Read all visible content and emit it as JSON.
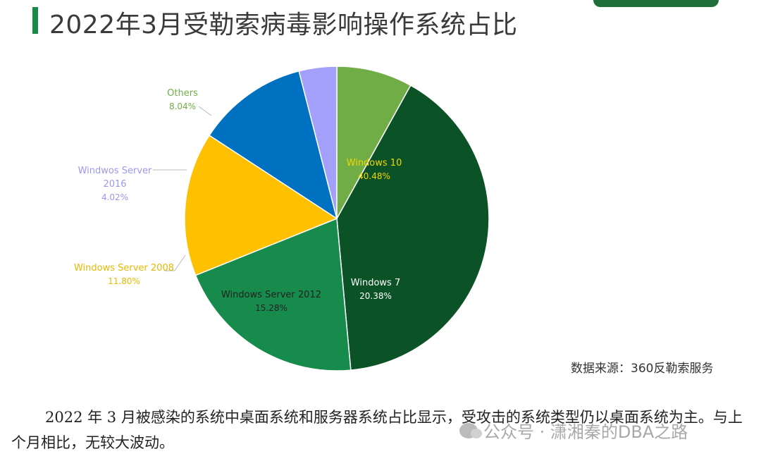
{
  "header": {
    "title": "2022年3月受勒索病毒影响操作系统占比"
  },
  "chart_data": {
    "type": "pie",
    "slices": [
      {
        "label": "Windows 10",
        "value": 40.48,
        "display": "40.48%",
        "color": "#0b5226",
        "label_color": "#f2d600"
      },
      {
        "label": "Windows 7",
        "value": 20.38,
        "display": "20.38%",
        "color": "#168b4b",
        "label_color": "#ffffff"
      },
      {
        "label": "Windows Server 2012",
        "value": 15.28,
        "display": "15.28%",
        "color": "#ffc000",
        "label_color": "#222222"
      },
      {
        "label": "Windows Server 2008",
        "value": 11.8,
        "display": "11.80%",
        "color": "#0070c0",
        "label_color": "#e6b800"
      },
      {
        "label": "Windwos Server 2016",
        "value": 4.02,
        "display": "4.02%",
        "color": "#a3a0fb",
        "label_color": "#9b97f2"
      },
      {
        "label": "Others",
        "value": 8.04,
        "display": "8.04%",
        "color": "#70ad47",
        "label_color": "#70ad47"
      }
    ]
  },
  "source": "数据来源：360反勒索服务",
  "paragraph": "2022 年 3 月被感染的系统中桌面系统和服务器系统占比显示，受攻击的系统类型仍以桌面系统为主。与上个月相比，无较大波动。",
  "watermark": "公众号 · 潇湘秦的DBA之路"
}
